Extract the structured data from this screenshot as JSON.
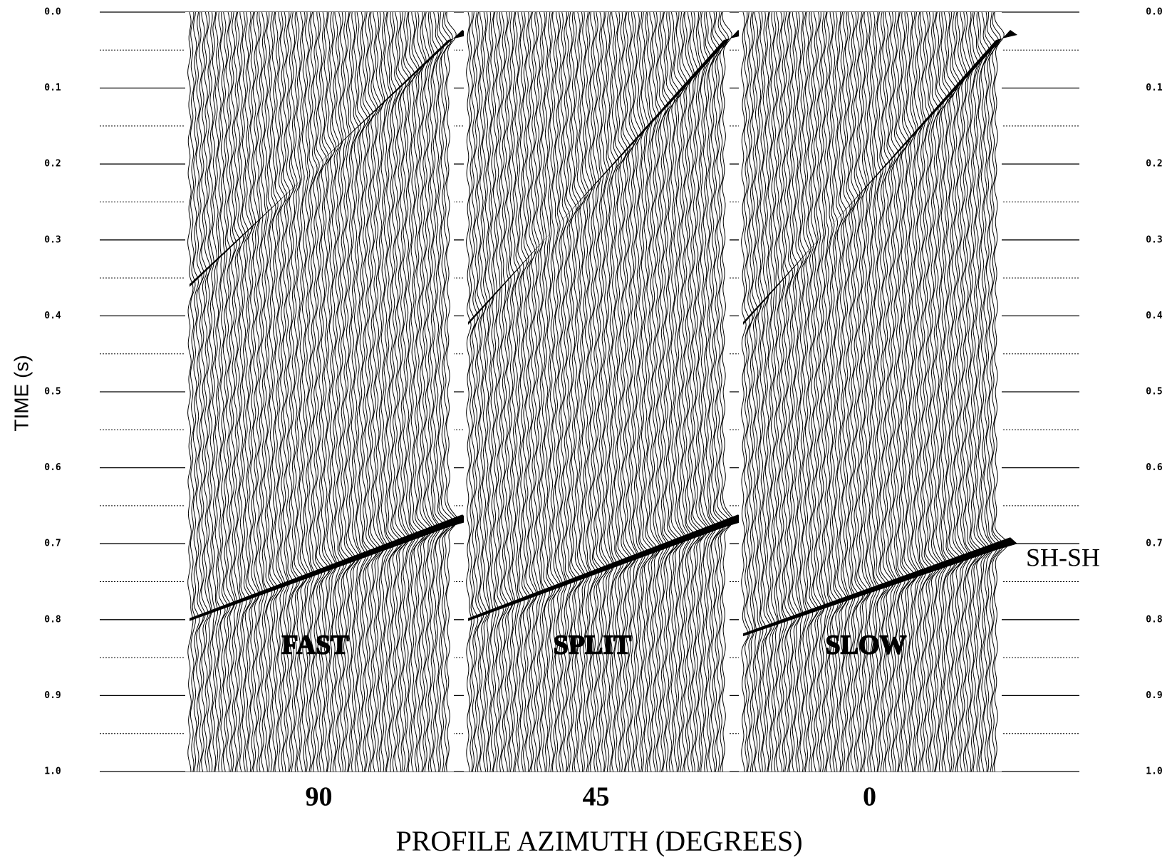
{
  "chart_data": {
    "type": "wiggle",
    "y_label": "TIME (s)",
    "x_label": "PROFILE AZIMUTH (DEGREES)",
    "annotation": "SH-SH",
    "ylim": [
      0,
      1
    ],
    "yticks": [
      {
        "value": 0,
        "label": "0.0"
      },
      0.1,
      0.2,
      0.3,
      0.4,
      0.5,
      0.6,
      0.7,
      0.8,
      0.9,
      {
        "value": 1,
        "label": "1.0"
      }
    ],
    "grid": true,
    "panels": [
      {
        "category": "90",
        "label": "FAST",
        "events": [
          {
            "t": [
              0.36,
              0.03
            ]
          },
          {
            "t": [
              0.8,
              0.67
            ]
          }
        ]
      },
      {
        "category": "45",
        "label": "SPLIT",
        "events": [
          {
            "t": [
              0.41,
              0.03
            ]
          },
          {
            "t": [
              0.8,
              0.67
            ]
          }
        ]
      },
      {
        "category": "0",
        "label": "SLOW",
        "events": [
          {
            "t": [
              0.41,
              0.03
            ]
          },
          {
            "t": [
              0.82,
              0.7
            ]
          }
        ]
      }
    ]
  }
}
